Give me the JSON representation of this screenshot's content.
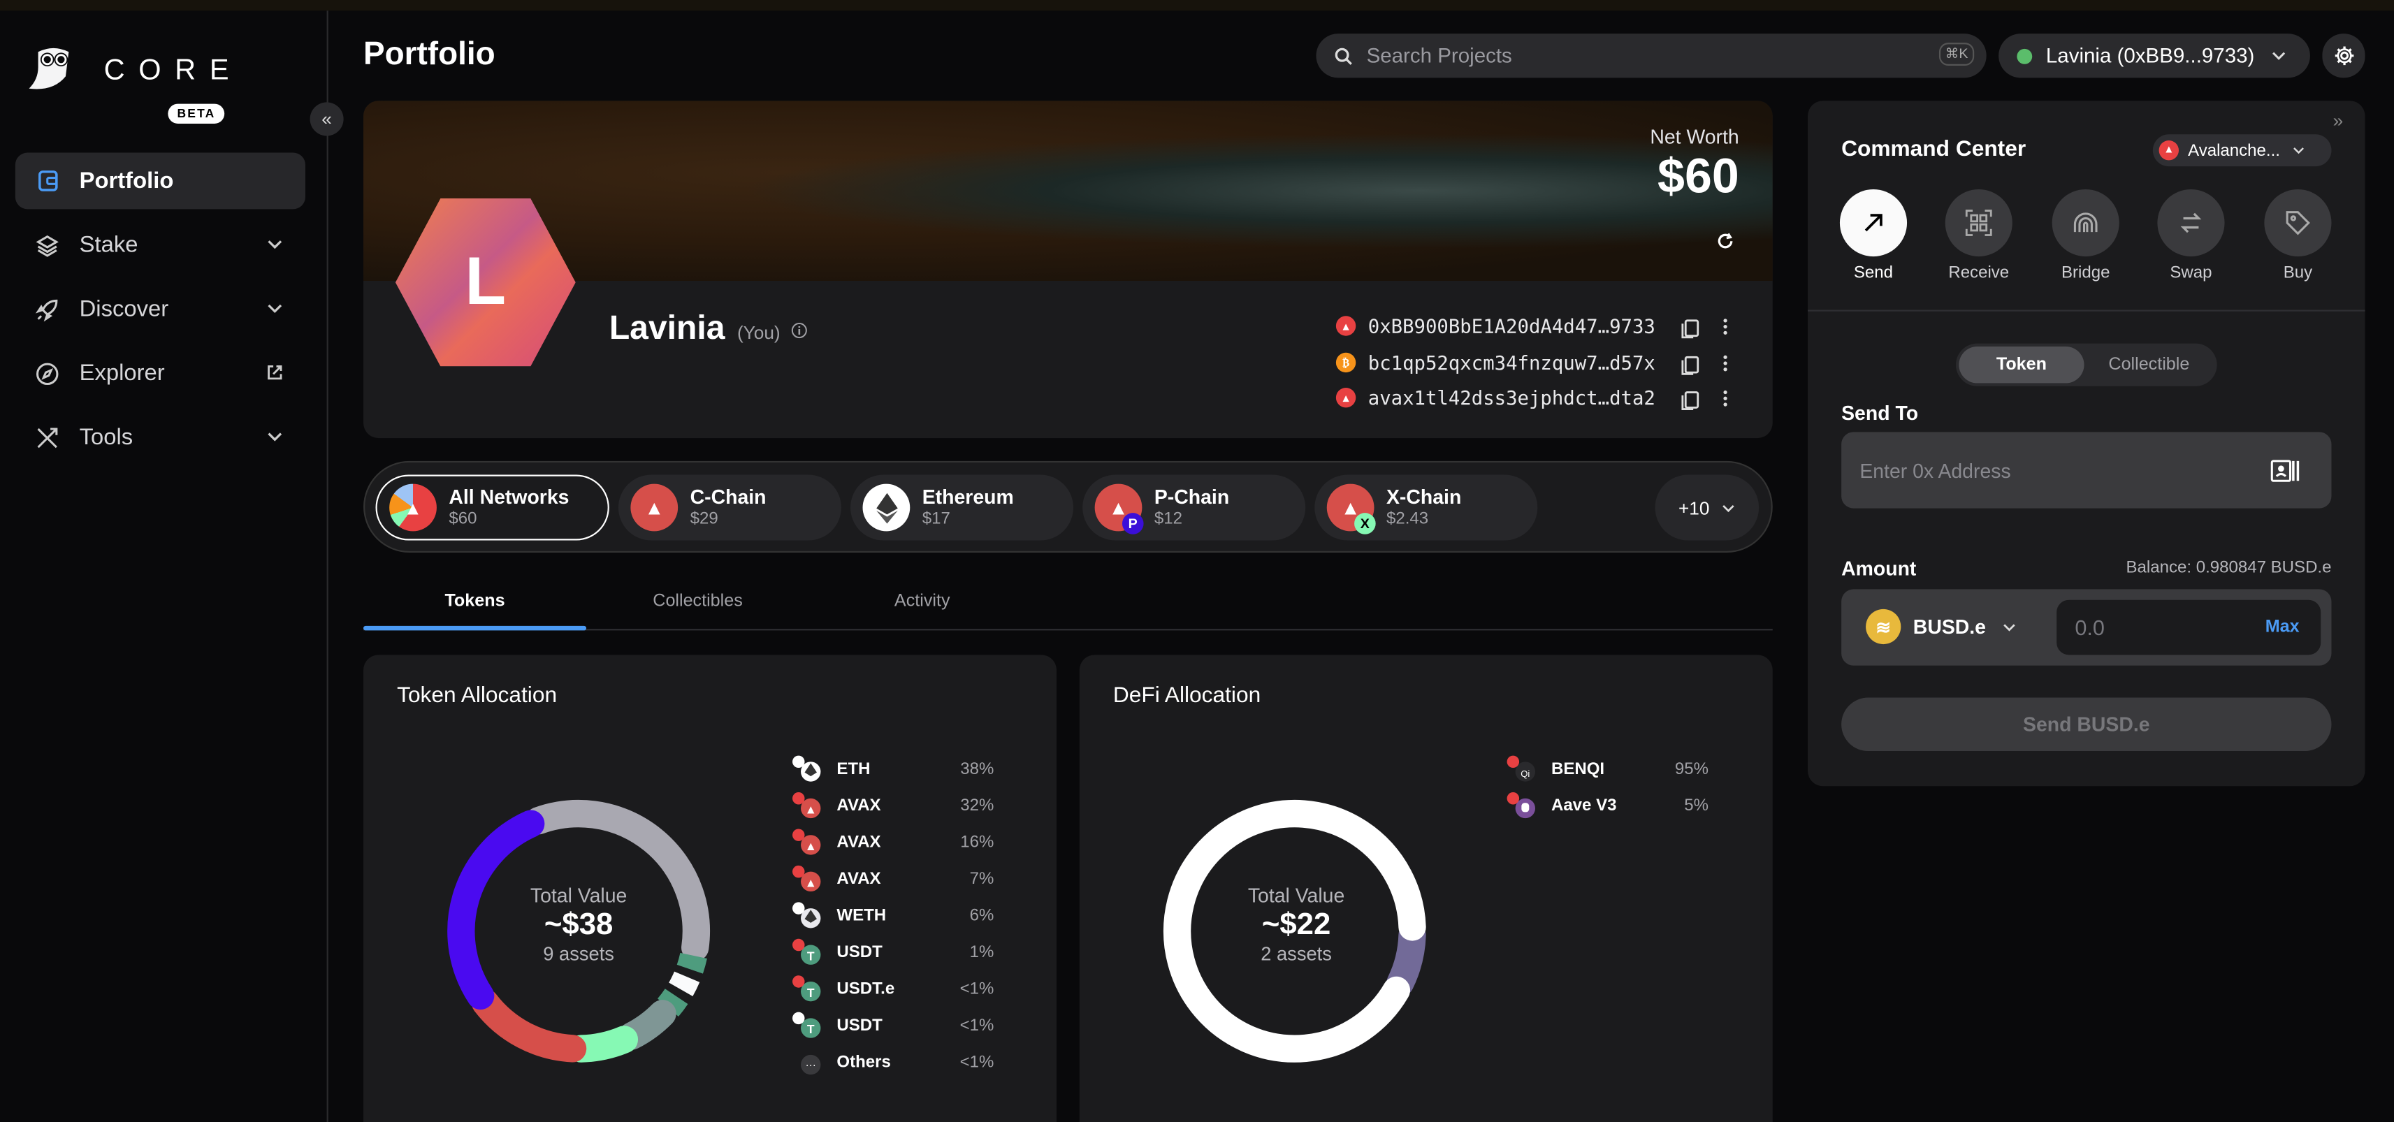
{
  "colors": {
    "accent": "#4b9bf5",
    "avax": "#e84142",
    "background": "#09090b",
    "card": "#1b1b1d",
    "online": "#5bbd6b"
  },
  "sidebar": {
    "logo_text": "CORE",
    "beta_label": "BETA",
    "items": [
      {
        "label": "Portfolio",
        "icon": "wallet-icon",
        "active": true
      },
      {
        "label": "Stake",
        "icon": "layers-icon",
        "has_submenu": true
      },
      {
        "label": "Discover",
        "icon": "rocket-icon",
        "has_submenu": true
      },
      {
        "label": "Explorer",
        "icon": "compass-icon",
        "external": true
      },
      {
        "label": "Tools",
        "icon": "tools-icon",
        "has_submenu": true
      }
    ]
  },
  "header": {
    "title": "Portfolio",
    "search_placeholder": "Search Projects",
    "search_shortcut": "⌘K",
    "account_label": "Lavinia (0xBB9...9733)"
  },
  "profile": {
    "avatar_letter": "L",
    "name": "Lavinia",
    "you_label": "(You)",
    "net_worth_label": "Net Worth",
    "net_worth": "$60",
    "addresses": [
      {
        "chain": "Avalanche C-Chain",
        "value": "0xBB900BbE1A20dA4d47…9733"
      },
      {
        "chain": "Bitcoin",
        "value": "bc1qp52qxcm34fnzquw7…d57x"
      },
      {
        "chain": "Avalanche X/P-Chain",
        "value": "avax1tl42dss3ejphdct…dta2"
      }
    ]
  },
  "networks": {
    "chips": [
      {
        "name": "All Networks",
        "value": "$60",
        "selected": true
      },
      {
        "name": "C-Chain",
        "value": "$29"
      },
      {
        "name": "Ethereum",
        "value": "$17"
      },
      {
        "name": "P-Chain",
        "value": "$12"
      },
      {
        "name": "X-Chain",
        "value": "$2.43"
      }
    ],
    "more_label": "+10"
  },
  "tabs": [
    {
      "label": "Tokens",
      "active": true
    },
    {
      "label": "Collectibles"
    },
    {
      "label": "Activity"
    }
  ],
  "token_allocation": {
    "title": "Token Allocation",
    "center_label": "Total Value",
    "center_value": "~$38",
    "center_sub": "9 assets",
    "items": [
      {
        "name": "ETH",
        "percent": "38%",
        "value": 38,
        "color": "#a9a8b1"
      },
      {
        "name": "AVAX",
        "percent": "32%",
        "value": 32,
        "color": "#4a0af0",
        "chain": "P-Chain"
      },
      {
        "name": "AVAX",
        "percent": "16%",
        "value": 16,
        "color": "#d64f4a",
        "chain": "C-Chain"
      },
      {
        "name": "AVAX",
        "percent": "7%",
        "value": 7,
        "color": "#86f9b4",
        "chain": "X-Chain"
      },
      {
        "name": "WETH",
        "percent": "6%",
        "value": 6,
        "color": "#7f9695"
      },
      {
        "name": "USDT",
        "percent": "1%",
        "value": 1,
        "color": "#4e9c7e"
      },
      {
        "name": "USDT.e",
        "percent": "<1%",
        "value": 0.5,
        "color": "#fafbfc"
      },
      {
        "name": "USDT",
        "percent": "<1%",
        "value": 0.5,
        "color": "#4e9c7e"
      },
      {
        "name": "Others",
        "percent": "<1%",
        "value": 0.5,
        "color": "#3a3a3d"
      }
    ]
  },
  "defi_allocation": {
    "title": "DeFi Allocation",
    "center_label": "Total Value",
    "center_value": "~$22",
    "center_sub": "2 assets",
    "items": [
      {
        "name": "BENQI",
        "percent": "95%",
        "value": 95,
        "color": "#ffffff"
      },
      {
        "name": "Aave V3",
        "percent": "5%",
        "value": 5,
        "color": "#726a98"
      }
    ]
  },
  "command_center": {
    "title": "Command Center",
    "network": "Avalanche...",
    "actions": [
      {
        "label": "Send",
        "icon": "arrow-up-right-icon",
        "active": true
      },
      {
        "label": "Receive",
        "icon": "qr-code-icon"
      },
      {
        "label": "Bridge",
        "icon": "bridge-icon"
      },
      {
        "label": "Swap",
        "icon": "swap-icon"
      },
      {
        "label": "Buy",
        "icon": "tag-icon"
      }
    ],
    "toggle": {
      "token": "Token",
      "collectible": "Collectible"
    },
    "send_to_label": "Send To",
    "address_placeholder": "Enter 0x Address",
    "amount_label": "Amount",
    "balance": "Balance: 0.980847 BUSD.e",
    "token": "BUSD.e",
    "amount_placeholder": "0.0",
    "max_label": "Max",
    "send_button": "Send BUSD.e"
  }
}
